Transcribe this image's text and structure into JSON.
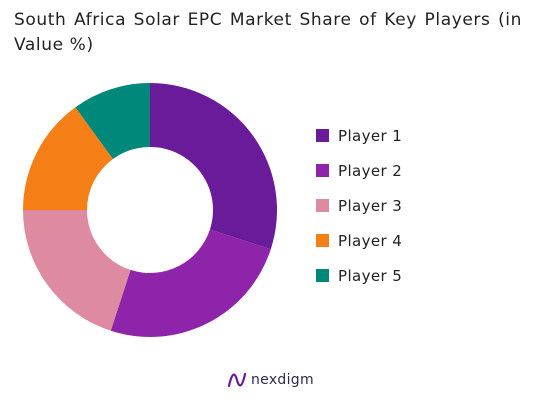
{
  "chart_data": {
    "type": "pie",
    "variant": "donut",
    "title": "South Africa Solar EPC Market Share of Key Players (in Value %)",
    "categories": [
      "Player 1",
      "Player 2",
      "Player 3",
      "Player 4",
      "Player 5"
    ],
    "values": [
      30,
      25,
      20,
      15,
      10
    ],
    "colors": [
      "#6a1b9a",
      "#8e24aa",
      "#de8aa0",
      "#f57f17",
      "#00897b"
    ],
    "legend_position": "right"
  },
  "brand": {
    "name": "nexdigm",
    "logo_icon": "nexdigm-logo-icon"
  }
}
